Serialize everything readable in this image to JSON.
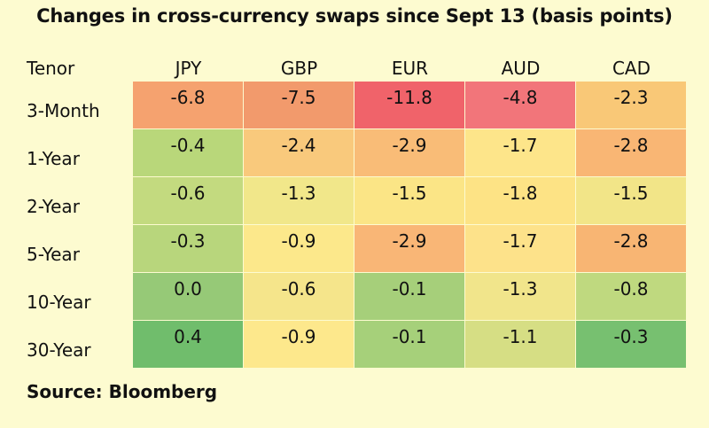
{
  "title": "Changes in cross-currency swaps since Sept 13 (basis points)",
  "source": "Source: Bloomberg",
  "chart_data": {
    "type": "heatmap",
    "title": "Changes in cross-currency swaps since Sept 13 (basis points)",
    "row_header": "Tenor",
    "columns": [
      "JPY",
      "GBP",
      "EUR",
      "AUD",
      "CAD"
    ],
    "rows": [
      "3-Month",
      "1-Year",
      "2-Year",
      "5-Year",
      "10-Year",
      "30-Year"
    ],
    "values": [
      [
        -6.8,
        -7.5,
        -11.8,
        -4.8,
        -2.3
      ],
      [
        -0.4,
        -2.4,
        -2.9,
        -1.7,
        -2.8
      ],
      [
        -0.6,
        -1.3,
        -1.5,
        -1.8,
        -1.5
      ],
      [
        -0.3,
        -0.9,
        -2.9,
        -1.7,
        -2.8
      ],
      [
        0.0,
        -0.6,
        -0.1,
        -1.3,
        -0.8
      ],
      [
        0.4,
        -0.9,
        -0.1,
        -1.1,
        -0.3
      ]
    ],
    "display": [
      [
        "-6.8",
        "-7.5",
        "-11.8",
        "-4.8",
        "-2.3"
      ],
      [
        "-0.4",
        "-2.4",
        "-2.9",
        "-1.7",
        "-2.8"
      ],
      [
        "-0.6",
        "-1.3",
        "-1.5",
        "-1.8",
        "-1.5"
      ],
      [
        "-0.3",
        "-0.9",
        "-2.9",
        "-1.7",
        "-2.8"
      ],
      [
        "0.0",
        "-0.6",
        "-0.1",
        "-1.3",
        "-0.8"
      ],
      [
        "0.4",
        "-0.9",
        "-0.1",
        "-1.1",
        "-0.3"
      ]
    ],
    "colors": [
      [
        "#f5a26f",
        "#f29a6c",
        "#f0636a",
        "#f2757a",
        "#f9c877"
      ],
      [
        "#b9d77a",
        "#f9c97c",
        "#f9bc77",
        "#fde58a",
        "#f9b674"
      ],
      [
        "#c3da7f",
        "#f1e78a",
        "#fbe586",
        "#fde385",
        "#f2e588"
      ],
      [
        "#b8d67c",
        "#fce88b",
        "#f9b676",
        "#fde28a",
        "#f8b573"
      ],
      [
        "#96c977",
        "#f5e58b",
        "#a6cf7a",
        "#f1e58b",
        "#bfd97f"
      ],
      [
        "#70bd6c",
        "#fde88c",
        "#a6d07a",
        "#d6de84",
        "#77c070"
      ]
    ]
  }
}
